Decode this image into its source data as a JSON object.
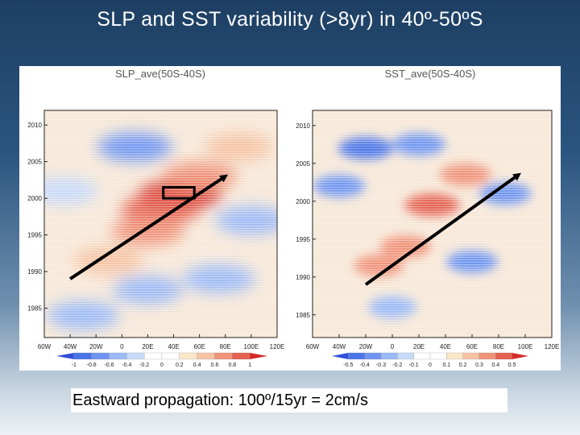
{
  "slide": {
    "title": "SLP and SST variability (>8yr) in 40º-50ºS",
    "caption": "Eastward propagation: 100º/15yr = 2cm/s"
  },
  "colors": {
    "arrow": "#000000",
    "box": "#000000"
  },
  "chart_data": [
    {
      "type": "heatmap",
      "title": "SLP_ave(50S-40S)",
      "x_ticks": [
        "60W",
        "40W",
        "20W",
        "0",
        "20E",
        "40E",
        "60E",
        "80E",
        "100E",
        "120E"
      ],
      "x_range": [
        -60,
        120
      ],
      "y_ticks": [
        "2010",
        "2005",
        "2000",
        "1995",
        "1990",
        "1985"
      ],
      "y_range": [
        1981,
        2012
      ],
      "colorbar_ticks": [
        "-1",
        "-0.8",
        "-0.6",
        "-0.4",
        "-0.2",
        "0",
        "0.2",
        "0.4",
        "0.6",
        "0.8",
        "1"
      ],
      "colorbar_range": [
        -1,
        1
      ],
      "annotations": {
        "arrow": {
          "from": [
            -40,
            1989
          ],
          "to": [
            80,
            2003
          ]
        },
        "box": {
          "lon": [
            32,
            56
          ],
          "year": [
            2000,
            2001.5
          ]
        }
      },
      "features": [
        {
          "lon": 45,
          "year": 2000.5,
          "value": 1.0
        },
        {
          "lon": 30,
          "year": 1998.5,
          "value": 0.8
        },
        {
          "lon": 60,
          "year": 2003,
          "value": 0.6
        },
        {
          "lon": 20,
          "year": 1995.5,
          "value": 0.5
        },
        {
          "lon": -10,
          "year": 1991.5,
          "value": 0.4
        },
        {
          "lon": 90,
          "year": 2007,
          "value": 0.3
        },
        {
          "lon": 10,
          "year": 2007,
          "value": -0.6
        },
        {
          "lon": 100,
          "year": 1997,
          "value": -0.5
        },
        {
          "lon": 75,
          "year": 1989,
          "value": -0.5
        },
        {
          "lon": -30,
          "year": 1984,
          "value": -0.5
        },
        {
          "lon": 20,
          "year": 1987.5,
          "value": -0.4
        },
        {
          "lon": -45,
          "year": 2001,
          "value": -0.3
        }
      ]
    },
    {
      "type": "heatmap",
      "title": "SST_ave(50S-40S)",
      "x_ticks": [
        "60W",
        "40W",
        "20W",
        "0",
        "20E",
        "40E",
        "60E",
        "80E",
        "100E",
        "120E"
      ],
      "x_range": [
        -60,
        120
      ],
      "y_ticks": [
        "2010",
        "2005",
        "2000",
        "1995",
        "1990",
        "1985"
      ],
      "y_range": [
        1982,
        2012
      ],
      "colorbar_ticks": [
        "-0.5",
        "-0.4",
        "-0.3",
        "-0.2",
        "-0.1",
        "0",
        "0.1",
        "0.2",
        "0.3",
        "0.4",
        "0.5"
      ],
      "colorbar_range": [
        -0.5,
        0.5
      ],
      "annotations": {
        "arrow": {
          "from": [
            -20,
            1989
          ],
          "to": [
            95,
            2003.5
          ]
        }
      },
      "features": [
        {
          "lon": 30,
          "year": 1999.5,
          "value": 0.4
        },
        {
          "lon": 55,
          "year": 2003.5,
          "value": 0.3
        },
        {
          "lon": 10,
          "year": 1994,
          "value": 0.3
        },
        {
          "lon": -10,
          "year": 1991.5,
          "value": 0.25
        },
        {
          "lon": 85,
          "year": 2001,
          "value": -0.3
        },
        {
          "lon": -20,
          "year": 2007,
          "value": -0.4
        },
        {
          "lon": 20,
          "year": 2007.5,
          "value": -0.35
        },
        {
          "lon": 60,
          "year": 1992,
          "value": -0.3
        },
        {
          "lon": -40,
          "year": 2002,
          "value": -0.3
        },
        {
          "lon": 0,
          "year": 1986,
          "value": -0.2
        }
      ]
    }
  ]
}
